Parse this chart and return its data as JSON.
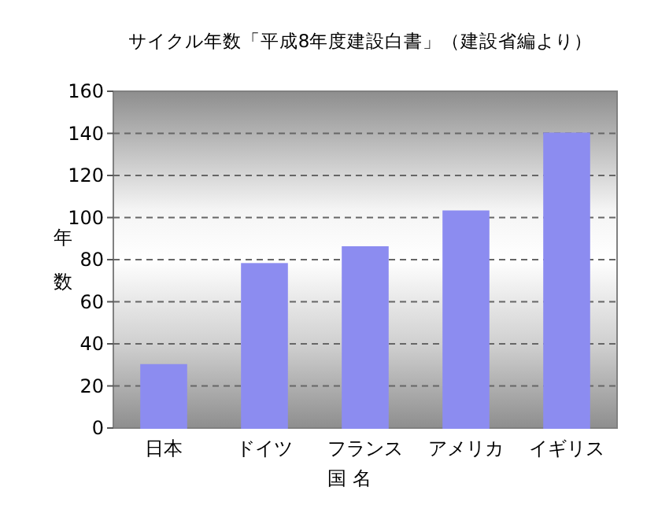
{
  "chart_data": {
    "type": "bar",
    "title": "サイクル年数「平成8年度建設白書」（建設省編より）",
    "xlabel": "国 名",
    "ylabel": "年数",
    "categories": [
      "日本",
      "ドイツ",
      "フランス",
      "アメリカ",
      "イギリス"
    ],
    "values": [
      30,
      78,
      86,
      103,
      140
    ],
    "color": "#8c8cf0",
    "ylim": [
      0,
      160
    ],
    "yticks": [
      0,
      20,
      40,
      60,
      80,
      100,
      120,
      140,
      160
    ],
    "grid": "y"
  }
}
